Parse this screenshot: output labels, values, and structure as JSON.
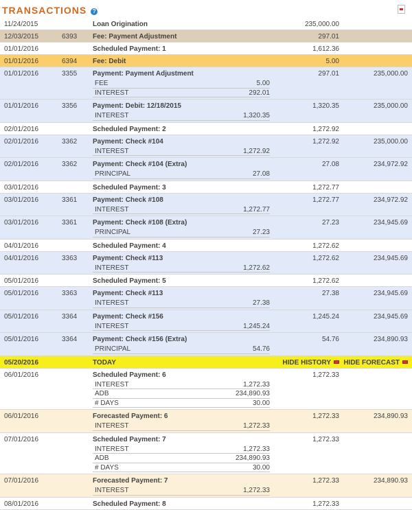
{
  "header": {
    "title": "TRANSACTIONS",
    "help": "?"
  },
  "hide_history": "HIDE HISTORY",
  "hide_forecast": "HIDE FORECAST",
  "rows": [
    {
      "type": "sched",
      "date": "11/24/2015",
      "num": "",
      "desc": "Loan Origination",
      "amount": "235,000.00",
      "balance": "",
      "subs": []
    },
    {
      "type": "fee",
      "date": "12/03/2015",
      "num": "6393",
      "desc": "Fee: Payment Adjustment",
      "amount": "297.01",
      "balance": "",
      "subs": []
    },
    {
      "type": "sched",
      "date": "01/01/2016",
      "num": "",
      "desc": "Scheduled Payment: 1",
      "amount": "1,612.36",
      "balance": "",
      "subs": []
    },
    {
      "type": "debit",
      "date": "01/01/2016",
      "num": "6394",
      "desc": "Fee: Debit",
      "amount": "5.00",
      "balance": "",
      "subs": []
    },
    {
      "type": "payment",
      "date": "01/01/2016",
      "num": "3355",
      "desc": "Payment: Payment Adjustment",
      "amount": "297.01",
      "balance": "235,000.00",
      "subs": [
        {
          "label": "FEE",
          "value": "5.00"
        },
        {
          "label": "INTEREST",
          "value": "292.01"
        }
      ]
    },
    {
      "type": "payment",
      "date": "01/01/2016",
      "num": "3356",
      "desc": "Payment: Debit: 12/18/2015",
      "amount": "1,320.35",
      "balance": "235,000.00",
      "subs": [
        {
          "label": "INTEREST",
          "value": "1,320.35"
        }
      ]
    },
    {
      "type": "sched",
      "date": "02/01/2016",
      "num": "",
      "desc": "Scheduled Payment: 2",
      "amount": "1,272.92",
      "balance": "",
      "subs": []
    },
    {
      "type": "payment",
      "date": "02/01/2016",
      "num": "3362",
      "desc": "Payment: Check #104",
      "amount": "1,272.92",
      "balance": "235,000.00",
      "subs": [
        {
          "label": "INTEREST",
          "value": "1,272.92"
        }
      ]
    },
    {
      "type": "payment",
      "date": "02/01/2016",
      "num": "3362",
      "desc": "Payment: Check #104 (Extra)",
      "amount": "27.08",
      "balance": "234,972.92",
      "subs": [
        {
          "label": "PRINCIPAL",
          "value": "27.08"
        }
      ]
    },
    {
      "type": "sched",
      "date": "03/01/2016",
      "num": "",
      "desc": "Scheduled Payment: 3",
      "amount": "1,272.77",
      "balance": "",
      "subs": []
    },
    {
      "type": "payment",
      "date": "03/01/2016",
      "num": "3361",
      "desc": "Payment: Check #108",
      "amount": "1,272.77",
      "balance": "234,972.92",
      "subs": [
        {
          "label": "INTEREST",
          "value": "1,272.77"
        }
      ]
    },
    {
      "type": "payment",
      "date": "03/01/2016",
      "num": "3361",
      "desc": "Payment: Check #108 (Extra)",
      "amount": "27.23",
      "balance": "234,945.69",
      "subs": [
        {
          "label": "PRINCIPAL",
          "value": "27.23"
        }
      ]
    },
    {
      "type": "sched",
      "date": "04/01/2016",
      "num": "",
      "desc": "Scheduled Payment: 4",
      "amount": "1,272.62",
      "balance": "",
      "subs": []
    },
    {
      "type": "payment",
      "date": "04/01/2016",
      "num": "3363",
      "desc": "Payment: Check #113",
      "amount": "1,272.62",
      "balance": "234,945.69",
      "subs": [
        {
          "label": "INTEREST",
          "value": "1,272.62"
        }
      ]
    },
    {
      "type": "sched",
      "date": "05/01/2016",
      "num": "",
      "desc": "Scheduled Payment: 5",
      "amount": "1,272.62",
      "balance": "",
      "subs": []
    },
    {
      "type": "payment",
      "date": "05/01/2016",
      "num": "3363",
      "desc": "Payment: Check #113",
      "amount": "27.38",
      "balance": "234,945.69",
      "subs": [
        {
          "label": "INTEREST",
          "value": "27.38"
        }
      ]
    },
    {
      "type": "payment",
      "date": "05/01/2016",
      "num": "3364",
      "desc": "Payment: Check #156",
      "amount": "1,245.24",
      "balance": "234,945.69",
      "subs": [
        {
          "label": "INTEREST",
          "value": "1,245.24"
        }
      ]
    },
    {
      "type": "payment",
      "date": "05/01/2016",
      "num": "3364",
      "desc": "Payment: Check #156 (Extra)",
      "amount": "54.76",
      "balance": "234,890.93",
      "subs": [
        {
          "label": "PRINCIPAL",
          "value": "54.76"
        }
      ]
    },
    {
      "type": "today",
      "date": "05/20/2016",
      "num": "",
      "desc": "TODAY",
      "amount": "",
      "balance": "",
      "subs": []
    },
    {
      "type": "sched",
      "date": "06/01/2016",
      "num": "",
      "desc": "Scheduled Payment: 6",
      "amount": "1,272.33",
      "balance": "",
      "subs": [
        {
          "label": "INTEREST",
          "value": "1,272.33"
        },
        {
          "label": "ADB",
          "value": "234,890.93"
        },
        {
          "label": "# DAYS",
          "value": "30.00"
        }
      ]
    },
    {
      "type": "forecast",
      "date": "06/01/2016",
      "num": "",
      "desc": "Forecasted Payment: 6",
      "amount": "1,272.33",
      "balance": "234,890.93",
      "subs": [
        {
          "label": "INTEREST",
          "value": "1,272.33"
        }
      ]
    },
    {
      "type": "sched",
      "date": "07/01/2016",
      "num": "",
      "desc": "Scheduled Payment: 7",
      "amount": "1,272.33",
      "balance": "",
      "subs": [
        {
          "label": "INTEREST",
          "value": "1,272.33"
        },
        {
          "label": "ADB",
          "value": "234,890.93"
        },
        {
          "label": "# DAYS",
          "value": "30.00"
        }
      ]
    },
    {
      "type": "forecast",
      "date": "07/01/2016",
      "num": "",
      "desc": "Forecasted Payment: 7",
      "amount": "1,272.33",
      "balance": "234,890.93",
      "subs": [
        {
          "label": "INTEREST",
          "value": "1,272.33"
        }
      ]
    },
    {
      "type": "sched",
      "date": "08/01/2016",
      "num": "",
      "desc": "Scheduled Payment: 8",
      "amount": "1,272.33",
      "balance": "",
      "subs": []
    }
  ]
}
